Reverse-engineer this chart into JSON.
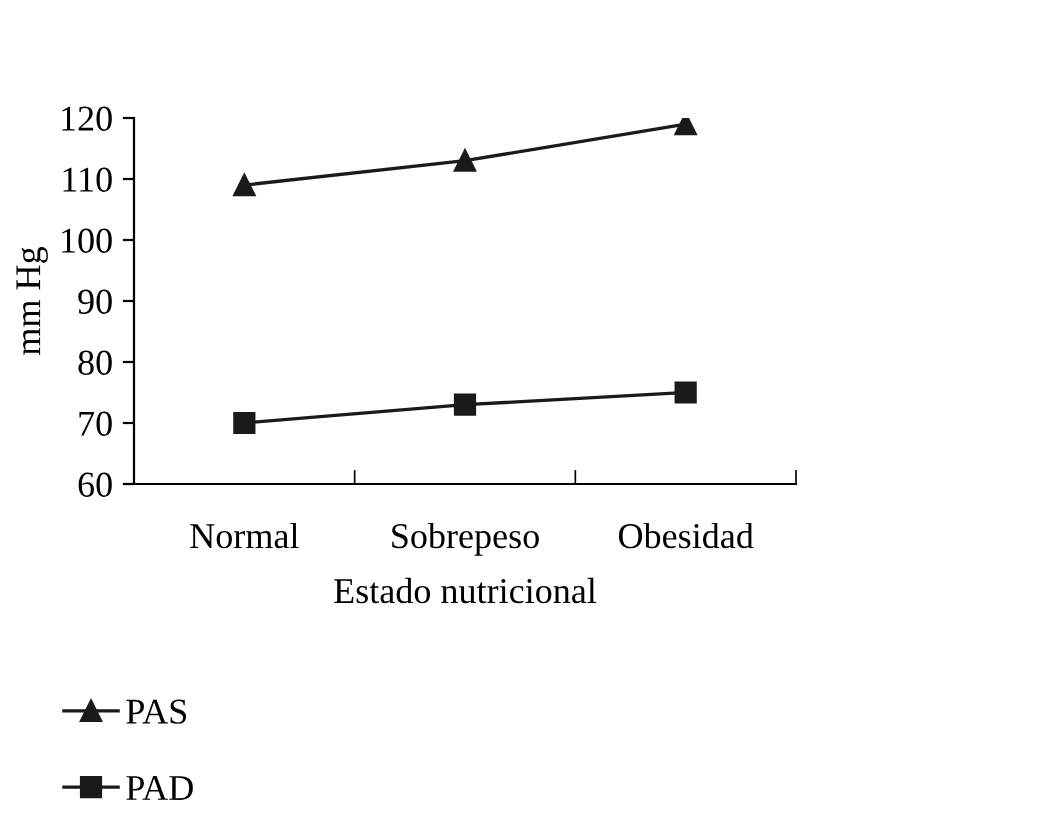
{
  "chart_data": {
    "type": "line",
    "xlabel": "Estado nutricional",
    "ylabel": "mm Hg",
    "categories": [
      "Normal",
      "Sobrepeso",
      "Obesidad"
    ],
    "series": [
      {
        "name": "PAS",
        "color": "#1a1a1a",
        "marker": "triangle",
        "values": [
          109,
          113,
          119
        ]
      },
      {
        "name": "PAD",
        "color": "#1a1a1a",
        "marker": "square",
        "values": [
          70,
          73,
          75
        ]
      }
    ],
    "ylim": [
      60,
      120
    ],
    "yticks": [
      60,
      70,
      80,
      90,
      100,
      110,
      120
    ],
    "grid": false,
    "legend": "bottom left",
    "line_style": "solid"
  }
}
